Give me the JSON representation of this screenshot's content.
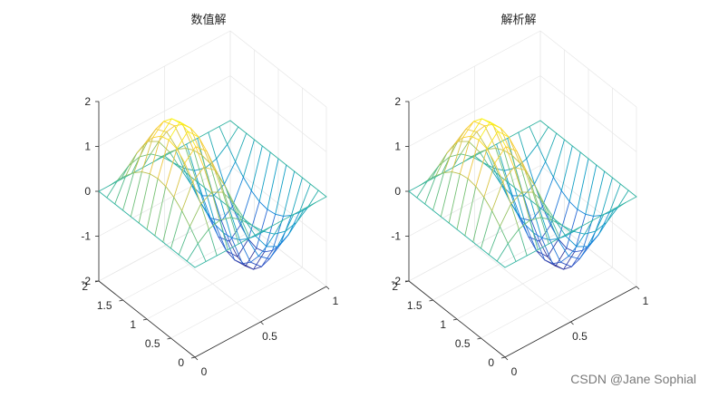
{
  "chart_data": [
    {
      "type": "surface",
      "title": "数值解",
      "x": {
        "ticks": [
          0,
          0.5,
          1
        ],
        "tick_labels": [
          "0",
          "0.5",
          "1"
        ],
        "lim": [
          0,
          1
        ]
      },
      "y": {
        "ticks": [
          0,
          0.5,
          1,
          1.5,
          2
        ],
        "tick_labels": [
          "0",
          "0.5",
          "1",
          "1.5",
          "2"
        ],
        "lim": [
          0,
          2
        ]
      },
      "z": {
        "ticks": [
          -2,
          -1,
          0,
          1,
          2
        ],
        "tick_labels": [
          "-2",
          "-1",
          "0",
          "1",
          "2"
        ],
        "lim": [
          -2,
          2
        ]
      },
      "surface": {
        "shape": "z = 2·sin(2πx)·sin(πy/2)",
        "x_range": [
          0,
          1
        ],
        "y_range": [
          0,
          2
        ],
        "grid": [
          13,
          13
        ],
        "peak": 2,
        "trough": -2
      },
      "grid": true,
      "colormap": "parula"
    },
    {
      "type": "surface",
      "title": "解析解",
      "x": {
        "ticks": [
          0,
          0.5,
          1
        ],
        "tick_labels": [
          "0",
          "0.5",
          "1"
        ],
        "lim": [
          0,
          1
        ]
      },
      "y": {
        "ticks": [
          0,
          0.5,
          1,
          1.5,
          2
        ],
        "tick_labels": [
          "0",
          "0.5",
          "1",
          "1.5",
          "2"
        ],
        "lim": [
          0,
          2
        ]
      },
      "z": {
        "ticks": [
          -2,
          -1,
          0,
          1,
          2
        ],
        "tick_labels": [
          "-2",
          "-1",
          "0",
          "1",
          "2"
        ],
        "lim": [
          -2,
          2
        ]
      },
      "surface": {
        "shape": "z = 2·sin(2πx)·sin(πy/2)",
        "x_range": [
          0,
          1
        ],
        "y_range": [
          0,
          2
        ],
        "grid": [
          13,
          13
        ],
        "peak": 2,
        "trough": -2
      },
      "grid": true,
      "colormap": "parula"
    }
  ],
  "watermark": "CSDN @Jane Sophial"
}
